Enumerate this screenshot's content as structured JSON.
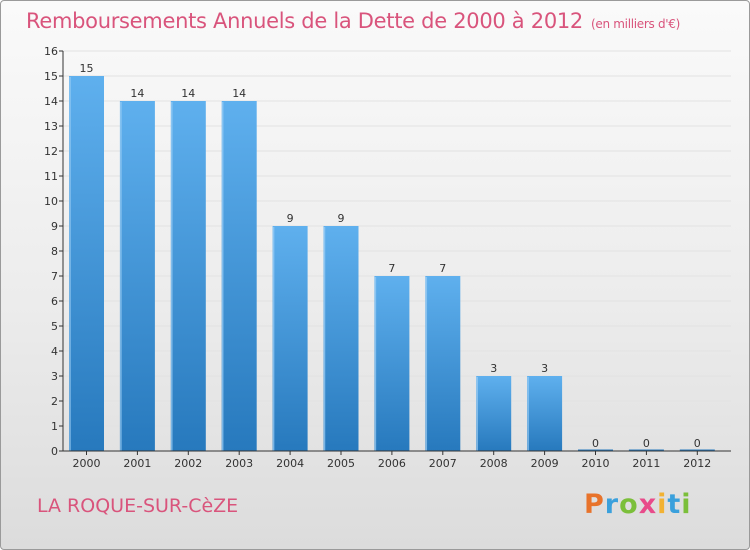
{
  "header": {
    "title": "Remboursements Annuels de la Dette de 2000 à 2012",
    "subtitle": "(en milliers d'€)"
  },
  "footer": {
    "place": "LA ROQUE-SUR-CèZE",
    "logo_letters": [
      "P",
      "r",
      "o",
      "x",
      "i",
      "t",
      "i"
    ],
    "logo_colors": [
      "#e8732b",
      "#3aa0dc",
      "#7bbf3a",
      "#e84b8a",
      "#f2b233",
      "#3aa0dc",
      "#7bbf3a"
    ]
  },
  "colors": {
    "bar_top": "#5fb0ee",
    "bar_bottom": "#2779bd",
    "axis": "#333333",
    "grid": "#e2e2e2"
  },
  "chart_data": {
    "type": "bar",
    "categories": [
      "2000",
      "2001",
      "2002",
      "2003",
      "2004",
      "2005",
      "2006",
      "2007",
      "2008",
      "2009",
      "2010",
      "2011",
      "2012"
    ],
    "values": [
      15,
      14,
      14,
      14,
      9,
      9,
      7,
      7,
      3,
      3,
      0,
      0,
      0
    ],
    "yticks": [
      "0",
      "1",
      "2",
      "3",
      "4",
      "5",
      "6",
      "7",
      "8",
      "9",
      "10",
      "11",
      "12",
      "13",
      "14",
      "15",
      "16"
    ],
    "ylim": [
      0,
      16
    ],
    "title": "Remboursements Annuels de la Dette de 2000 à 2012",
    "subtitle": "(en milliers d'€)",
    "xlabel": "",
    "ylabel": ""
  }
}
